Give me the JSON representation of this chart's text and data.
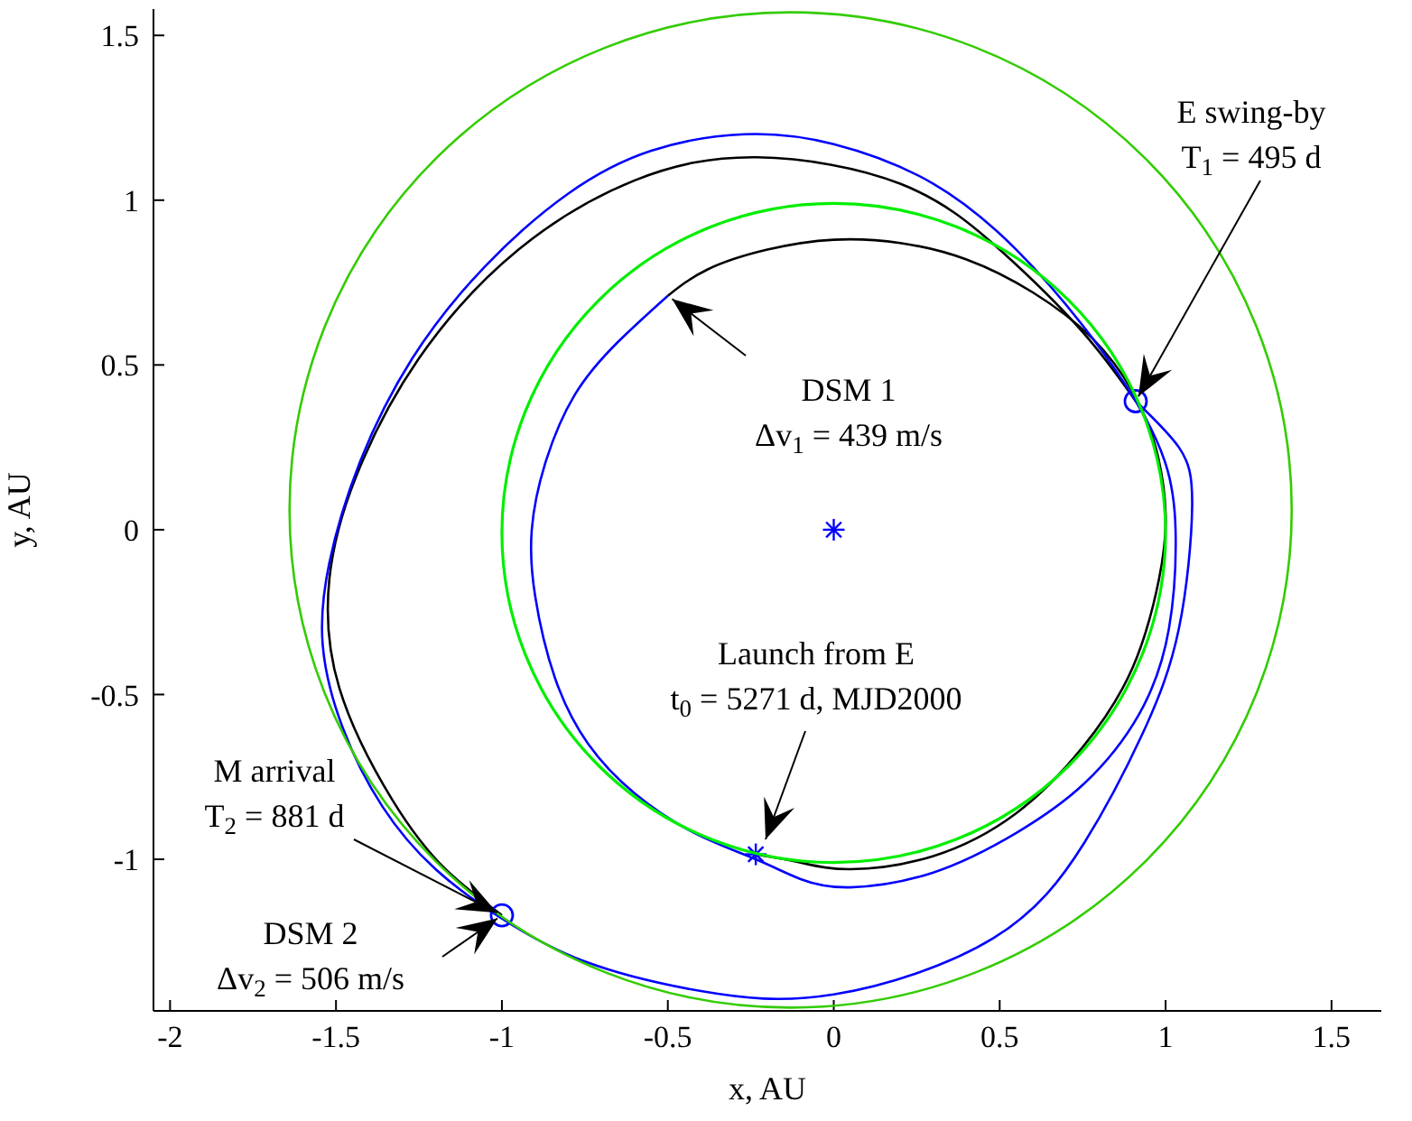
{
  "chart_data": {
    "type": "line",
    "xlabel": "x, AU",
    "ylabel": "y, AU",
    "xlim": [
      -2.05,
      1.65
    ],
    "ylim": [
      -1.46,
      1.58
    ],
    "xticks": [
      -2,
      -1.5,
      -1,
      -0.5,
      0,
      0.5,
      1,
      1.5
    ],
    "yticks": [
      -1,
      -0.5,
      0,
      0.5,
      1,
      1.5
    ],
    "grid": false,
    "series": [
      {
        "color": "#000000",
        "x": [
          -0.235,
          -0.1,
          0.05,
          0.3,
          0.55,
          0.75,
          0.9,
          0.98,
          1.0,
          0.97,
          0.9,
          0.78,
          0.6,
          0.4,
          0.2,
          0,
          -0.2,
          -0.38,
          -0.5
        ],
        "values": [
          -0.985,
          -1.01,
          -1.03,
          -0.99,
          -0.86,
          -0.66,
          -0.42,
          -0.15,
          0.05,
          0.25,
          0.42,
          0.58,
          0.72,
          0.82,
          0.87,
          0.88,
          0.85,
          0.79,
          0.71
        ]
      },
      {
        "color": "#000000",
        "x": [
          0.91,
          0.75,
          0.5,
          0.2,
          -0.23,
          -0.6,
          -0.95,
          -1.25,
          -1.44,
          -1.52,
          -1.49,
          -1.33,
          -1.17,
          -1.0
        ],
        "values": [
          0.39,
          0.6,
          0.85,
          1.05,
          1.13,
          1.06,
          0.85,
          0.52,
          0.16,
          -0.15,
          -0.48,
          -0.82,
          -1.03,
          -1.17
        ]
      },
      {
        "color": "#0000ff",
        "x": [
          -0.5,
          -0.65,
          -0.78,
          -0.87,
          -0.91,
          -0.9,
          -0.84,
          -0.74,
          -0.6,
          -0.42,
          -0.235,
          -0.1,
          0.05,
          0.3,
          0.55,
          0.755,
          0.92,
          1.01,
          1.03,
          1.0,
          0.91,
          0.75,
          0.55,
          0.3,
          0,
          -0.27,
          -0.55,
          -0.8,
          -1.05,
          -1.27,
          -1.43,
          -1.52,
          -1.54,
          -1.48,
          -1.36,
          -1.2,
          -1.0,
          -0.75,
          -0.4,
          0,
          0.48,
          0.755,
          0.93,
          1.04,
          1.08,
          1.04,
          0.91
        ],
        "values": [
          0.71,
          0.57,
          0.41,
          0.2,
          0,
          -0.2,
          -0.45,
          -0.65,
          -0.8,
          -0.92,
          -1.0,
          -1.06,
          -1.085,
          -1.04,
          -0.92,
          -0.77,
          -0.56,
          -0.3,
          0,
          0.2,
          0.39,
          0.62,
          0.85,
          1.05,
          1.17,
          1.2,
          1.15,
          1.02,
          0.8,
          0.52,
          0.2,
          -0.1,
          -0.35,
          -0.6,
          -0.84,
          -1.03,
          -1.18,
          -1.31,
          -1.4,
          -1.41,
          -1.24,
          -0.95,
          -0.62,
          -0.3,
          0.07,
          0.25,
          0.39
        ]
      },
      {
        "type": "scatter",
        "marker": "cross",
        "color": "#0000ff",
        "x": [
          0,
          -0.235
        ],
        "values": [
          0,
          -0.985
        ]
      },
      {
        "type": "scatter",
        "marker": "circle",
        "color": "#0000ff",
        "x": [
          0.91,
          -1.0
        ],
        "values": [
          0.39,
          -1.17
        ]
      }
    ],
    "annotations": [
      {
        "text": "DSM 1\nΔv$_{1}$ = 439 m/s",
        "x": -0.5,
        "y": 0.71
      },
      {
        "text": "E swing-by\nT$_{1}$ = 495 d",
        "x": 0.91,
        "y": 0.39
      },
      "Launch from E\nt$_{0}$ = 5271 d, MJD2000",
      {
        "text": "M arrival\nT$_{2}$ = 881 d",
        "x": -1.0,
        "y": -1.17
      },
      {
        "text": "DSM 2\nΔv$_{2}$ = 506 m/s",
        "x": -1.0,
        "y": -1.17
      }
    ]
  }
}
